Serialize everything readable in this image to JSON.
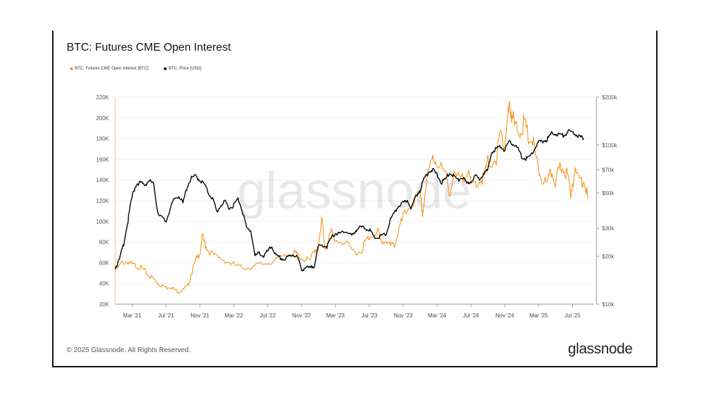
{
  "title": "BTC: Futures CME Open Interest",
  "footer": "© 2025 Glassnode. All Rights Reserved.",
  "logo_text": "glassnode",
  "watermark": "glassnode",
  "colors": {
    "oi": "#f7931a",
    "price": "#000000",
    "grid": "#eeeeee"
  },
  "chart_data": {
    "type": "line",
    "title": "BTC: Futures CME Open Interest",
    "legend": [
      {
        "name": "BTC: Futures CME Open Interest [BTC]",
        "color": "#f7931a"
      },
      {
        "name": "BTC: Price [USD]",
        "color": "#000000"
      }
    ],
    "legend_position": "top-left",
    "x_ticks": [
      "Mar '21",
      "Jul '21",
      "Nov '21",
      "Mar '22",
      "Jul '22",
      "Nov '22",
      "Mar '23",
      "Jul '23",
      "Nov '23",
      "Mar '24",
      "Jul '24",
      "Nov '24",
      "Mar '25",
      "Jul '25"
    ],
    "x_tick_months": [
      2,
      6,
      10,
      14,
      18,
      22,
      26,
      30,
      34,
      38,
      42,
      46,
      50,
      54
    ],
    "x_range_months": [
      0,
      56.5
    ],
    "y_left": {
      "label": "Open Interest [BTC]",
      "range": [
        20000,
        220000
      ],
      "ticks": [
        20000,
        40000,
        60000,
        80000,
        100000,
        120000,
        140000,
        160000,
        180000,
        200000,
        220000
      ],
      "tick_labels": [
        "20K",
        "40K",
        "60K",
        "80K",
        "100K",
        "120K",
        "140K",
        "160K",
        "180K",
        "200K",
        "220K"
      ]
    },
    "y_right": {
      "label": "Price [USD]",
      "scale": "log",
      "range": [
        10000,
        200000
      ],
      "ticks": [
        10000,
        20000,
        30000,
        50000,
        70000,
        100000,
        200000
      ],
      "tick_labels": [
        "$10k",
        "$20k",
        "$30k",
        "$50k",
        "$70k",
        "$100k",
        "$200k"
      ]
    },
    "grid": true,
    "series": [
      {
        "name": "BTC: Futures CME Open Interest [BTC]",
        "axis": "left",
        "points": [
          [
            0,
            52000
          ],
          [
            0.8,
            60000
          ],
          [
            1.5,
            61000
          ],
          [
            2,
            58000
          ],
          [
            2.5,
            57000
          ],
          [
            3,
            55000
          ],
          [
            3.5,
            52000
          ],
          [
            4,
            47000
          ],
          [
            4.5,
            45000
          ],
          [
            5,
            40000
          ],
          [
            5.5,
            38000
          ],
          [
            6,
            36000
          ],
          [
            6.5,
            37000
          ],
          [
            7,
            34000
          ],
          [
            7.5,
            32000
          ],
          [
            8,
            34000
          ],
          [
            8.6,
            38000
          ],
          [
            9,
            50000
          ],
          [
            9.5,
            62000
          ],
          [
            10,
            70000
          ],
          [
            10.3,
            86000
          ],
          [
            10.6,
            78000
          ],
          [
            11,
            72000
          ],
          [
            12,
            65000
          ],
          [
            13,
            62000
          ],
          [
            14,
            58000
          ],
          [
            15,
            55000
          ],
          [
            16,
            56000
          ],
          [
            17,
            58000
          ],
          [
            18,
            60000
          ],
          [
            19,
            62000
          ],
          [
            20,
            68000
          ],
          [
            21,
            70000
          ],
          [
            21.5,
            68000
          ],
          [
            22,
            64000
          ],
          [
            23,
            62000
          ],
          [
            23.5,
            72000
          ],
          [
            24,
            75000
          ],
          [
            24.4,
            100000
          ],
          [
            24.8,
            75000
          ],
          [
            25.5,
            90000
          ],
          [
            26,
            82000
          ],
          [
            27,
            80000
          ],
          [
            28,
            72000
          ],
          [
            29,
            70000
          ],
          [
            29.5,
            80000
          ],
          [
            30,
            85000
          ],
          [
            31,
            92000
          ],
          [
            31.5,
            78000
          ],
          [
            32,
            82000
          ],
          [
            32.5,
            76000
          ],
          [
            33,
            78000
          ],
          [
            33.5,
            92000
          ],
          [
            34,
            104000
          ],
          [
            35,
            118000
          ],
          [
            36,
            125000
          ],
          [
            36.3,
            108000
          ],
          [
            36.8,
            140000
          ],
          [
            37.5,
            162000
          ],
          [
            38,
            158000
          ],
          [
            39,
            145000
          ],
          [
            39.5,
            128000
          ],
          [
            40,
            142000
          ],
          [
            41,
            140000
          ],
          [
            41.5,
            150000
          ],
          [
            42,
            135000
          ],
          [
            43,
            140000
          ],
          [
            43.5,
            142000
          ],
          [
            44,
            157000
          ],
          [
            45,
            160000
          ],
          [
            45.5,
            185000
          ],
          [
            46,
            175000
          ],
          [
            46.3,
            198000
          ],
          [
            46.6,
            212000
          ],
          [
            46.9,
            202000
          ],
          [
            47.2,
            190000
          ],
          [
            47.8,
            188000
          ],
          [
            48.3,
            195000
          ],
          [
            48.8,
            180000
          ],
          [
            49.3,
            178000
          ],
          [
            49.8,
            155000
          ],
          [
            50.3,
            142000
          ],
          [
            51,
            135000
          ],
          [
            51.5,
            148000
          ],
          [
            52,
            138000
          ],
          [
            52.5,
            150000
          ],
          [
            53,
            152000
          ],
          [
            53.4,
            144000
          ],
          [
            53.8,
            128000
          ],
          [
            54.2,
            146000
          ],
          [
            55,
            140000
          ],
          [
            55.4,
            140000
          ],
          [
            55.8,
            122000
          ]
        ]
      },
      {
        "name": "BTC: Price [USD]",
        "axis": "right",
        "points": [
          [
            0,
            17000
          ],
          [
            0.5,
            19000
          ],
          [
            1,
            24000
          ],
          [
            1.5,
            33000
          ],
          [
            2,
            48000
          ],
          [
            2.5,
            57000
          ],
          [
            3,
            58000
          ],
          [
            3.5,
            56000
          ],
          [
            4,
            60000
          ],
          [
            4.5,
            57000
          ],
          [
            5,
            38000
          ],
          [
            5.5,
            35000
          ],
          [
            6,
            33000
          ],
          [
            6.5,
            40000
          ],
          [
            7,
            46000
          ],
          [
            7.5,
            48000
          ],
          [
            8,
            43000
          ],
          [
            8.5,
            55000
          ],
          [
            9,
            62000
          ],
          [
            9.5,
            64000
          ],
          [
            10,
            60000
          ],
          [
            10.5,
            57000
          ],
          [
            11,
            50000
          ],
          [
            11.5,
            46000
          ],
          [
            12,
            38000
          ],
          [
            12.5,
            42000
          ],
          [
            13,
            44000
          ],
          [
            13.5,
            40000
          ],
          [
            14,
            42000
          ],
          [
            14.5,
            46000
          ],
          [
            15,
            39000
          ],
          [
            15.5,
            30000
          ],
          [
            16,
            29000
          ],
          [
            16.5,
            20000
          ],
          [
            17,
            21000
          ],
          [
            17.5,
            20000
          ],
          [
            18,
            21500
          ],
          [
            18.5,
            23000
          ],
          [
            19,
            20000
          ],
          [
            19.5,
            19500
          ],
          [
            20,
            19000
          ],
          [
            20.5,
            20000
          ],
          [
            21,
            20500
          ],
          [
            21.5,
            19800
          ],
          [
            22,
            16500
          ],
          [
            22.5,
            17000
          ],
          [
            23,
            16800
          ],
          [
            23.5,
            17500
          ],
          [
            24,
            23000
          ],
          [
            24.5,
            23500
          ],
          [
            25,
            23000
          ],
          [
            25.5,
            26000
          ],
          [
            26,
            28000
          ],
          [
            26.5,
            27500
          ],
          [
            27,
            29000
          ],
          [
            27.5,
            28000
          ],
          [
            28,
            27000
          ],
          [
            28.5,
            29500
          ],
          [
            29,
            30500
          ],
          [
            29.5,
            30000
          ],
          [
            30,
            29500
          ],
          [
            30.5,
            26500
          ],
          [
            31,
            26000
          ],
          [
            31.5,
            27000
          ],
          [
            32,
            27500
          ],
          [
            32.5,
            34000
          ],
          [
            33,
            37500
          ],
          [
            33.5,
            42000
          ],
          [
            34,
            43000
          ],
          [
            34.5,
            45000
          ],
          [
            35,
            40000
          ],
          [
            35.5,
            48000
          ],
          [
            36,
            52000
          ],
          [
            36.5,
            62000
          ],
          [
            37,
            68000
          ],
          [
            37.5,
            70000
          ],
          [
            38,
            65000
          ],
          [
            38.5,
            58000
          ],
          [
            39,
            61000
          ],
          [
            39.5,
            67000
          ],
          [
            40,
            64000
          ],
          [
            40.5,
            60000
          ],
          [
            41,
            63000
          ],
          [
            41.5,
            57000
          ],
          [
            42,
            59000
          ],
          [
            42.5,
            64000
          ],
          [
            43,
            61000
          ],
          [
            43.5,
            67000
          ],
          [
            44,
            69000
          ],
          [
            44.5,
            91000
          ],
          [
            45,
            95000
          ],
          [
            45.5,
            98000
          ],
          [
            46,
            93000
          ],
          [
            46.5,
            104000
          ],
          [
            47,
            102000
          ],
          [
            47.5,
            96000
          ],
          [
            48,
            84000
          ],
          [
            48.5,
            82000
          ],
          [
            49,
            85000
          ],
          [
            49.5,
            94000
          ],
          [
            50,
            104000
          ],
          [
            50.5,
            106000
          ],
          [
            51,
            108000
          ],
          [
            51.5,
            118000
          ],
          [
            52,
            118000
          ],
          [
            52.5,
            116000
          ],
          [
            53,
            115000
          ],
          [
            53.5,
            122000
          ],
          [
            54,
            120000
          ],
          [
            54.5,
            116000
          ],
          [
            55,
            112000
          ],
          [
            55.3,
            110000
          ]
        ]
      }
    ]
  }
}
